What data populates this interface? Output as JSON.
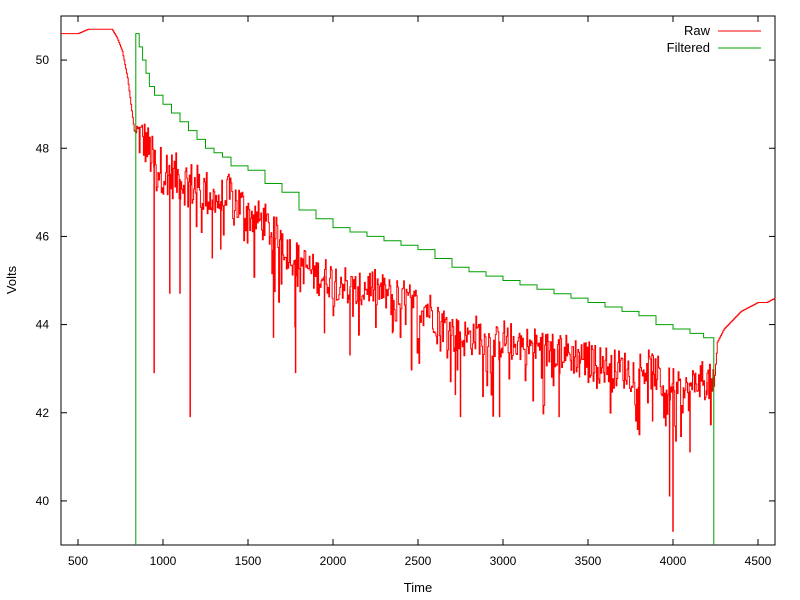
{
  "chart_data": {
    "type": "line",
    "xlabel": "Time",
    "ylabel": "Volts",
    "xlim": [
      400,
      4600
    ],
    "ylim": [
      39,
      51
    ],
    "xticks": [
      500,
      1000,
      1500,
      2000,
      2500,
      3000,
      3500,
      4000,
      4500
    ],
    "yticks": [
      40,
      42,
      44,
      46,
      48,
      50
    ],
    "legend_position": "top-right",
    "grid": false,
    "series": [
      {
        "name": "Raw",
        "color": "#ff0000",
        "style": "noisy",
        "points": [
          [
            400,
            50.6
          ],
          [
            500,
            50.6
          ],
          [
            560,
            50.7
          ],
          [
            600,
            50.7
          ],
          [
            650,
            50.7
          ],
          [
            700,
            50.7
          ],
          [
            730,
            50.5
          ],
          [
            760,
            50.2
          ],
          [
            790,
            49.6
          ],
          [
            810,
            49.0
          ],
          [
            830,
            48.4
          ],
          [
            850,
            48.3
          ],
          [
            900,
            48.1
          ],
          [
            950,
            47.6
          ],
          [
            1000,
            47.5
          ],
          [
            1050,
            47.4
          ],
          [
            1100,
            47.3
          ],
          [
            1150,
            47.2
          ],
          [
            1200,
            47.1
          ],
          [
            1250,
            47.0
          ],
          [
            1300,
            46.8
          ],
          [
            1350,
            46.8
          ],
          [
            1400,
            46.9
          ],
          [
            1450,
            46.7
          ],
          [
            1500,
            46.5
          ],
          [
            1550,
            46.4
          ],
          [
            1600,
            46.3
          ],
          [
            1650,
            46.0
          ],
          [
            1700,
            46.0
          ],
          [
            1750,
            45.6
          ],
          [
            1800,
            45.4
          ],
          [
            1850,
            45.3
          ],
          [
            1900,
            45.1
          ],
          [
            1950,
            45.1
          ],
          [
            2000,
            45.0
          ],
          [
            2050,
            45.0
          ],
          [
            2100,
            44.8
          ],
          [
            2150,
            44.7
          ],
          [
            2200,
            44.9
          ],
          [
            2250,
            44.8
          ],
          [
            2300,
            44.7
          ],
          [
            2350,
            44.6
          ],
          [
            2400,
            44.6
          ],
          [
            2450,
            44.5
          ],
          [
            2500,
            44.4
          ],
          [
            2550,
            44.4
          ],
          [
            2600,
            44.2
          ],
          [
            2650,
            44.0
          ],
          [
            2700,
            43.8
          ],
          [
            2750,
            43.7
          ],
          [
            2800,
            43.7
          ],
          [
            2850,
            43.8
          ],
          [
            2900,
            43.6
          ],
          [
            2950,
            43.5
          ],
          [
            3000,
            43.7
          ],
          [
            3050,
            43.6
          ],
          [
            3100,
            43.6
          ],
          [
            3150,
            43.5
          ],
          [
            3200,
            43.5
          ],
          [
            3250,
            43.4
          ],
          [
            3300,
            43.5
          ],
          [
            3350,
            43.4
          ],
          [
            3400,
            43.3
          ],
          [
            3450,
            43.3
          ],
          [
            3500,
            43.2
          ],
          [
            3550,
            43.1
          ],
          [
            3600,
            43.1
          ],
          [
            3650,
            43.0
          ],
          [
            3700,
            43.0
          ],
          [
            3750,
            42.9
          ],
          [
            3800,
            43.0
          ],
          [
            3850,
            43.0
          ],
          [
            3900,
            42.9
          ],
          [
            3950,
            42.6
          ],
          [
            4000,
            42.6
          ],
          [
            4050,
            42.4
          ],
          [
            4100,
            42.5
          ],
          [
            4150,
            42.8
          ],
          [
            4200,
            42.7
          ],
          [
            4240,
            42.6
          ],
          [
            4260,
            43.6
          ],
          [
            4300,
            43.9
          ],
          [
            4350,
            44.1
          ],
          [
            4400,
            44.3
          ],
          [
            4450,
            44.4
          ],
          [
            4500,
            44.5
          ],
          [
            4550,
            44.5
          ],
          [
            4600,
            44.6
          ]
        ],
        "spikes": [
          [
            948,
            42.9
          ],
          [
            1040,
            44.7
          ],
          [
            1100,
            44.7
          ],
          [
            1160,
            41.9
          ],
          [
            1290,
            45.5
          ],
          [
            1340,
            45.7
          ],
          [
            1650,
            43.7
          ],
          [
            1780,
            42.9
          ],
          [
            1950,
            43.8
          ],
          [
            2100,
            43.3
          ],
          [
            2350,
            43.8
          ],
          [
            2720,
            42.4
          ],
          [
            2750,
            41.9
          ],
          [
            2980,
            41.9
          ],
          [
            3330,
            41.9
          ],
          [
            3450,
            42.8
          ],
          [
            3800,
            42.2
          ],
          [
            3880,
            41.8
          ],
          [
            3980,
            40.1
          ],
          [
            4000,
            39.3
          ],
          [
            4100,
            41.1
          ],
          [
            4200,
            42.4
          ]
        ]
      },
      {
        "name": "Filtered",
        "color": "#00a000",
        "style": "step",
        "points": [
          [
            840,
            39.0
          ],
          [
            840,
            50.6
          ],
          [
            860,
            50.3
          ],
          [
            880,
            50.0
          ],
          [
            900,
            49.7
          ],
          [
            920,
            49.4
          ],
          [
            950,
            49.2
          ],
          [
            1000,
            49.0
          ],
          [
            1050,
            48.8
          ],
          [
            1100,
            48.6
          ],
          [
            1150,
            48.4
          ],
          [
            1200,
            48.2
          ],
          [
            1250,
            48.0
          ],
          [
            1300,
            47.9
          ],
          [
            1350,
            47.8
          ],
          [
            1400,
            47.6
          ],
          [
            1500,
            47.5
          ],
          [
            1600,
            47.2
          ],
          [
            1700,
            47.0
          ],
          [
            1800,
            46.6
          ],
          [
            1900,
            46.4
          ],
          [
            2000,
            46.2
          ],
          [
            2100,
            46.1
          ],
          [
            2200,
            46.0
          ],
          [
            2300,
            45.9
          ],
          [
            2400,
            45.8
          ],
          [
            2500,
            45.7
          ],
          [
            2600,
            45.5
          ],
          [
            2700,
            45.3
          ],
          [
            2800,
            45.2
          ],
          [
            2900,
            45.1
          ],
          [
            3000,
            45.0
          ],
          [
            3100,
            44.9
          ],
          [
            3200,
            44.8
          ],
          [
            3300,
            44.7
          ],
          [
            3400,
            44.6
          ],
          [
            3500,
            44.5
          ],
          [
            3600,
            44.4
          ],
          [
            3700,
            44.3
          ],
          [
            3800,
            44.2
          ],
          [
            3900,
            44.0
          ],
          [
            4000,
            43.9
          ],
          [
            4100,
            43.8
          ],
          [
            4180,
            43.7
          ],
          [
            4240,
            43.7
          ],
          [
            4240,
            39.0
          ]
        ]
      }
    ]
  }
}
